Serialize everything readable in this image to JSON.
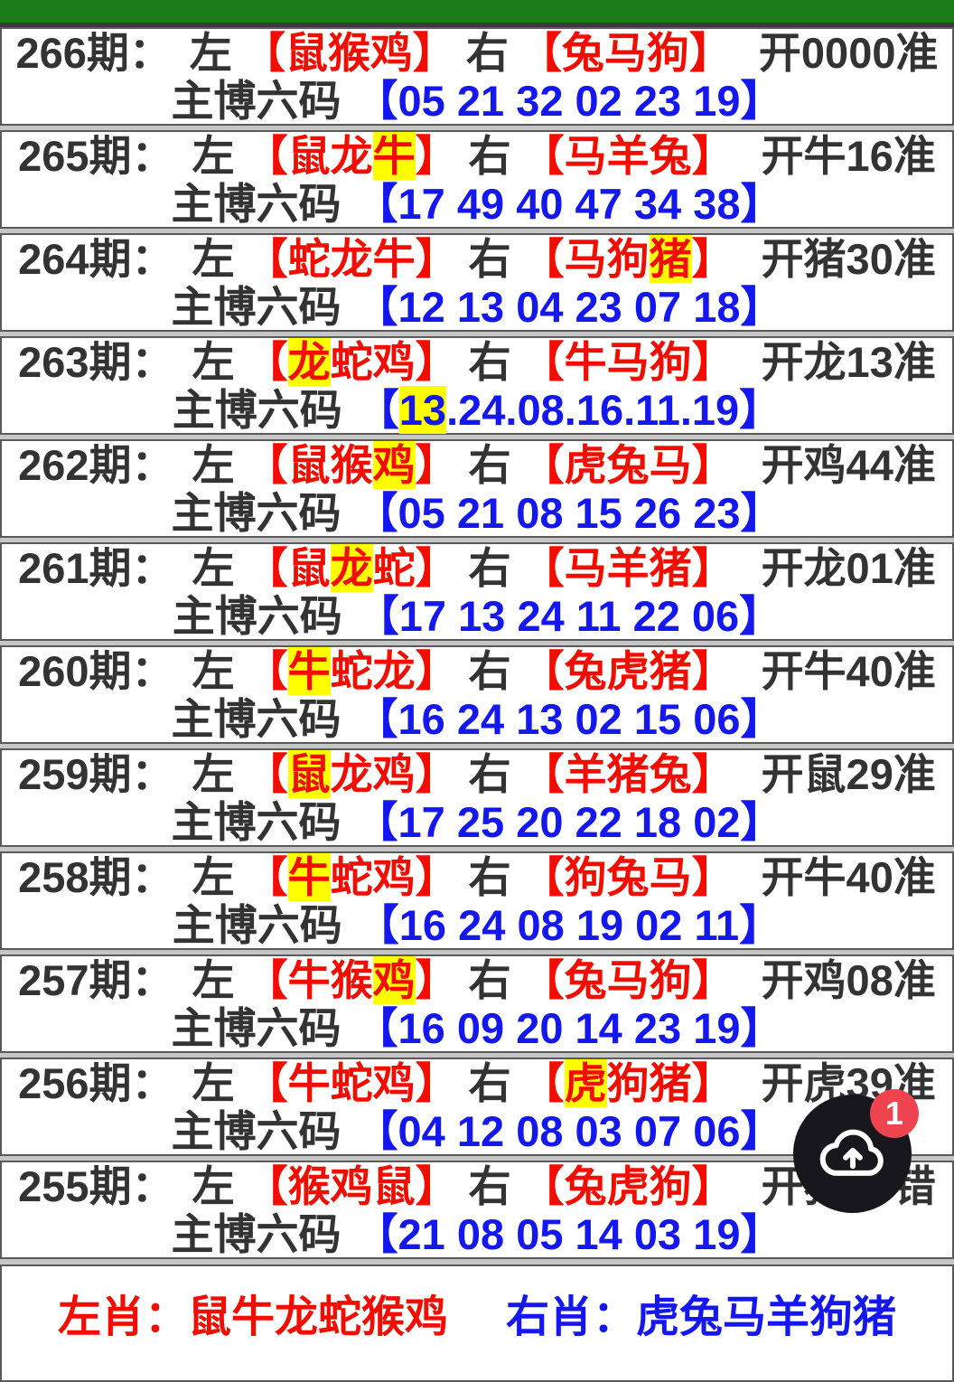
{
  "page": {
    "top_bar_color": "#1a7d1a",
    "accent_red": "#f20d00",
    "accent_blue": "#1418ee",
    "highlight_yellow": "#ffff00",
    "text_dark": "#333333"
  },
  "labels": {
    "period_suffix": "期：",
    "left": "左",
    "right": "右",
    "codes_prefix": "主博六码",
    "open_bracket": "【",
    "close_bracket": "】"
  },
  "rows": [
    {
      "period": "266",
      "left": [
        {
          "c": "鼠"
        },
        {
          "c": "猴"
        },
        {
          "c": "鸡"
        }
      ],
      "right": [
        {
          "c": "兔"
        },
        {
          "c": "马"
        },
        {
          "c": "狗"
        }
      ],
      "result": [
        {
          "t": "开0000准"
        }
      ],
      "sep": " ",
      "codes": [
        {
          "t": "05"
        },
        {
          "t": "21"
        },
        {
          "t": "32"
        },
        {
          "t": "02"
        },
        {
          "t": "23"
        },
        {
          "t": "19"
        }
      ]
    },
    {
      "period": "265",
      "left": [
        {
          "c": "鼠"
        },
        {
          "c": "龙"
        },
        {
          "c": "牛",
          "h": true
        }
      ],
      "right": [
        {
          "c": "马"
        },
        {
          "c": "羊"
        },
        {
          "c": "兔"
        }
      ],
      "result": [
        {
          "t": "开牛16准"
        }
      ],
      "sep": " ",
      "codes": [
        {
          "t": "17"
        },
        {
          "t": "49"
        },
        {
          "t": "40"
        },
        {
          "t": "47"
        },
        {
          "t": "34"
        },
        {
          "t": "38"
        }
      ]
    },
    {
      "period": "264",
      "left": [
        {
          "c": "蛇"
        },
        {
          "c": "龙"
        },
        {
          "c": "牛"
        }
      ],
      "right": [
        {
          "c": "马"
        },
        {
          "c": "狗"
        },
        {
          "c": "猪",
          "h": true
        }
      ],
      "result": [
        {
          "t": "开猪30准"
        }
      ],
      "sep": " ",
      "codes": [
        {
          "t": "12"
        },
        {
          "t": "13"
        },
        {
          "t": "04"
        },
        {
          "t": "23"
        },
        {
          "t": "07"
        },
        {
          "t": "18"
        }
      ]
    },
    {
      "period": "263",
      "left": [
        {
          "c": "龙",
          "h": true
        },
        {
          "c": "蛇"
        },
        {
          "c": "鸡"
        }
      ],
      "right": [
        {
          "c": "牛"
        },
        {
          "c": "马"
        },
        {
          "c": "狗"
        }
      ],
      "result": [
        {
          "t": "开龙13准"
        }
      ],
      "sep": ".",
      "codes": [
        {
          "t": "13",
          "h": true
        },
        {
          "t": "24"
        },
        {
          "t": "08"
        },
        {
          "t": "16"
        },
        {
          "t": "11"
        },
        {
          "t": "19"
        }
      ]
    },
    {
      "period": "262",
      "left": [
        {
          "c": "鼠"
        },
        {
          "c": "猴"
        },
        {
          "c": "鸡",
          "h": true
        }
      ],
      "right": [
        {
          "c": "虎"
        },
        {
          "c": "兔"
        },
        {
          "c": "马"
        }
      ],
      "result": [
        {
          "t": "开鸡44准"
        }
      ],
      "sep": " ",
      "codes": [
        {
          "t": "05"
        },
        {
          "t": "21"
        },
        {
          "t": "08"
        },
        {
          "t": "15"
        },
        {
          "t": "26"
        },
        {
          "t": "23"
        }
      ]
    },
    {
      "period": "261",
      "left": [
        {
          "c": "鼠"
        },
        {
          "c": "龙",
          "h": true
        },
        {
          "c": "蛇"
        }
      ],
      "right": [
        {
          "c": "马"
        },
        {
          "c": "羊"
        },
        {
          "c": "猪"
        }
      ],
      "result": [
        {
          "t": "开龙01准"
        }
      ],
      "sep": " ",
      "codes": [
        {
          "t": "17"
        },
        {
          "t": "13"
        },
        {
          "t": "24"
        },
        {
          "t": "11"
        },
        {
          "t": "22"
        },
        {
          "t": "06"
        }
      ]
    },
    {
      "period": "260",
      "left": [
        {
          "c": "牛",
          "h": true
        },
        {
          "c": "蛇"
        },
        {
          "c": "龙"
        }
      ],
      "right": [
        {
          "c": "兔"
        },
        {
          "c": "虎"
        },
        {
          "c": "猪"
        }
      ],
      "result": [
        {
          "t": "开牛40准"
        }
      ],
      "sep": " ",
      "codes": [
        {
          "t": "16"
        },
        {
          "t": "24"
        },
        {
          "t": "13"
        },
        {
          "t": "02"
        },
        {
          "t": "15"
        },
        {
          "t": "06"
        }
      ]
    },
    {
      "period": "259",
      "left": [
        {
          "c": "鼠",
          "h": true
        },
        {
          "c": "龙"
        },
        {
          "c": "鸡"
        }
      ],
      "right": [
        {
          "c": "羊"
        },
        {
          "c": "猪"
        },
        {
          "c": "兔"
        }
      ],
      "result": [
        {
          "t": "开鼠29准"
        }
      ],
      "sep": " ",
      "codes": [
        {
          "t": "17"
        },
        {
          "t": "25"
        },
        {
          "t": "20"
        },
        {
          "t": "22"
        },
        {
          "t": "18"
        },
        {
          "t": "02"
        }
      ]
    },
    {
      "period": "258",
      "left": [
        {
          "c": "牛",
          "h": true
        },
        {
          "c": "蛇"
        },
        {
          "c": "鸡"
        }
      ],
      "right": [
        {
          "c": "狗"
        },
        {
          "c": "兔"
        },
        {
          "c": "马"
        }
      ],
      "result": [
        {
          "t": "开牛40准"
        }
      ],
      "sep": " ",
      "codes": [
        {
          "t": "16"
        },
        {
          "t": "24"
        },
        {
          "t": "08"
        },
        {
          "t": "19"
        },
        {
          "t": "02"
        },
        {
          "t": "11"
        }
      ]
    },
    {
      "period": "257",
      "left": [
        {
          "c": "牛"
        },
        {
          "c": "猴"
        },
        {
          "c": "鸡",
          "h": true
        }
      ],
      "right": [
        {
          "c": "兔"
        },
        {
          "c": "马"
        },
        {
          "c": "狗"
        }
      ],
      "result": [
        {
          "t": "开鸡08准"
        }
      ],
      "sep": " ",
      "codes": [
        {
          "t": "16"
        },
        {
          "t": "09"
        },
        {
          "t": "20"
        },
        {
          "t": "14"
        },
        {
          "t": "23"
        },
        {
          "t": "19"
        }
      ]
    },
    {
      "period": "256",
      "left": [
        {
          "c": "牛"
        },
        {
          "c": "蛇"
        },
        {
          "c": "鸡"
        }
      ],
      "right": [
        {
          "c": "虎",
          "h": true
        },
        {
          "c": "狗"
        },
        {
          "c": "猪"
        }
      ],
      "result": [
        {
          "t": "开虎39准"
        }
      ],
      "sep": " ",
      "codes": [
        {
          "t": "04"
        },
        {
          "t": "12"
        },
        {
          "t": "08"
        },
        {
          "t": "03"
        },
        {
          "t": "07"
        },
        {
          "t": "06"
        }
      ]
    },
    {
      "period": "255",
      "left": [
        {
          "c": "猴"
        },
        {
          "c": "鸡"
        },
        {
          "c": "鼠"
        }
      ],
      "right": [
        {
          "c": "兔"
        },
        {
          "c": "虎"
        },
        {
          "c": "狗"
        }
      ],
      "result": [
        {
          "t": "开猪"
        },
        {
          "sp": 2
        },
        {
          "t": "错"
        }
      ],
      "sep": " ",
      "codes": [
        {
          "t": "21"
        },
        {
          "t": "08"
        },
        {
          "t": "05"
        },
        {
          "t": "14"
        },
        {
          "t": "03"
        },
        {
          "t": "19"
        }
      ]
    }
  ],
  "footer": {
    "left_label": "左肖：",
    "left_value": "鼠牛龙蛇猴鸡",
    "right_label": "右肖：",
    "right_value": "虎兔马羊狗猪"
  },
  "fab": {
    "badge": "1",
    "icon": "cloud-upload-icon"
  }
}
